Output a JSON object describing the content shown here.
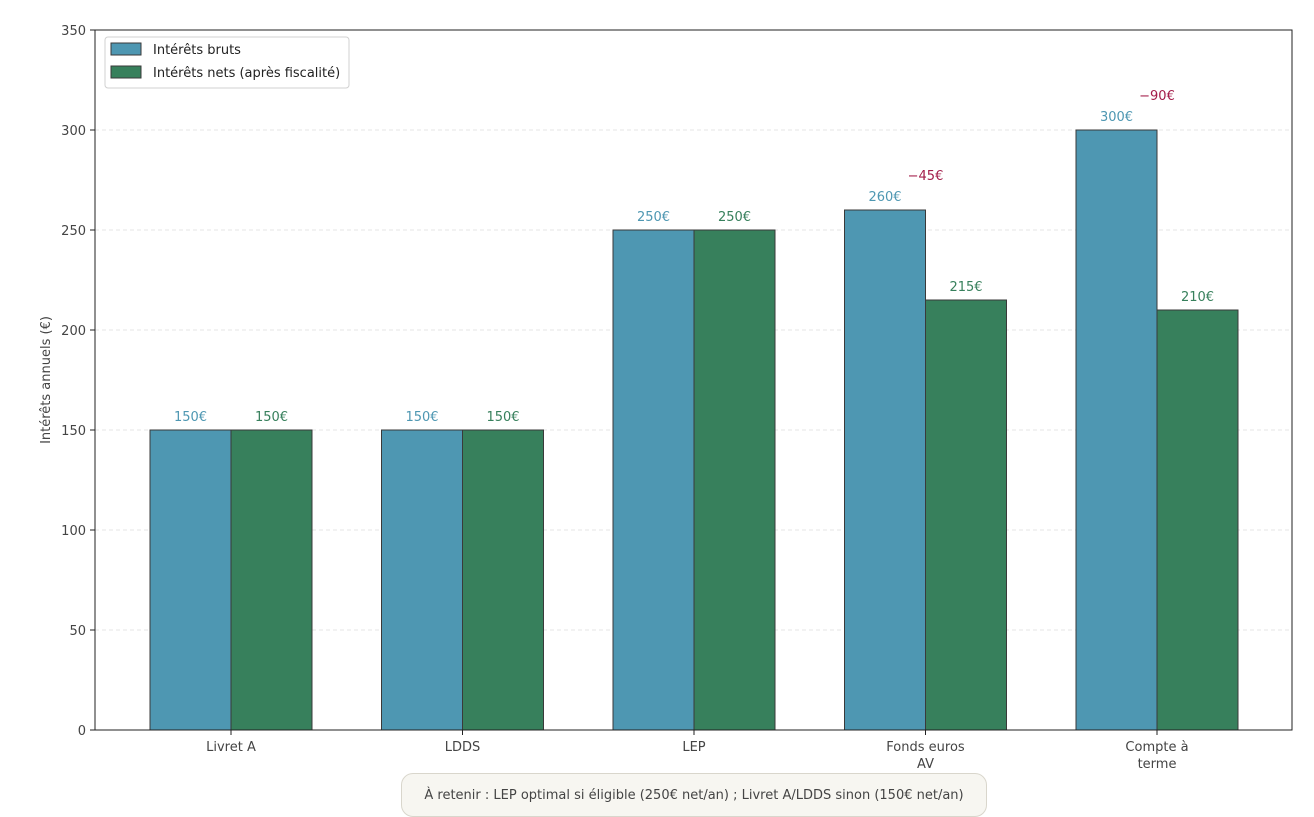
{
  "chart_data": {
    "type": "bar",
    "title": "",
    "xlabel": "",
    "ylabel": "Intérêts annuels (€)",
    "ylim": [
      0,
      350
    ],
    "yticks": [
      0,
      50,
      100,
      150,
      200,
      250,
      300,
      350
    ],
    "grid": "horizontal dashed",
    "legend_position": "top-left",
    "categories": [
      [
        "Livret A"
      ],
      [
        "LDDS"
      ],
      [
        "LEP"
      ],
      [
        "Fonds euros",
        "AV"
      ],
      [
        "Compte à",
        "terme"
      ]
    ],
    "series": [
      {
        "name": "Intérêts bruts",
        "color": "#4e97b2",
        "values": [
          150,
          150,
          250,
          260,
          300
        ],
        "labels": [
          "150€",
          "150€",
          "250€",
          "260€",
          "300€"
        ]
      },
      {
        "name": "Intérêts nets (après fiscalité)",
        "color": "#37805c",
        "values": [
          150,
          150,
          250,
          215,
          210
        ],
        "labels": [
          "150€",
          "150€",
          "250€",
          "215€",
          "210€"
        ]
      }
    ],
    "tax_annotations": [
      {
        "category_index": 3,
        "text": "−45€"
      },
      {
        "category_index": 4,
        "text": "−90€"
      }
    ],
    "annotation_color": "#a31d4a",
    "note": "À retenir : LEP optimal si éligible (250€ net/an) ; Livret A/LDDS sinon (150€ net/an)"
  }
}
